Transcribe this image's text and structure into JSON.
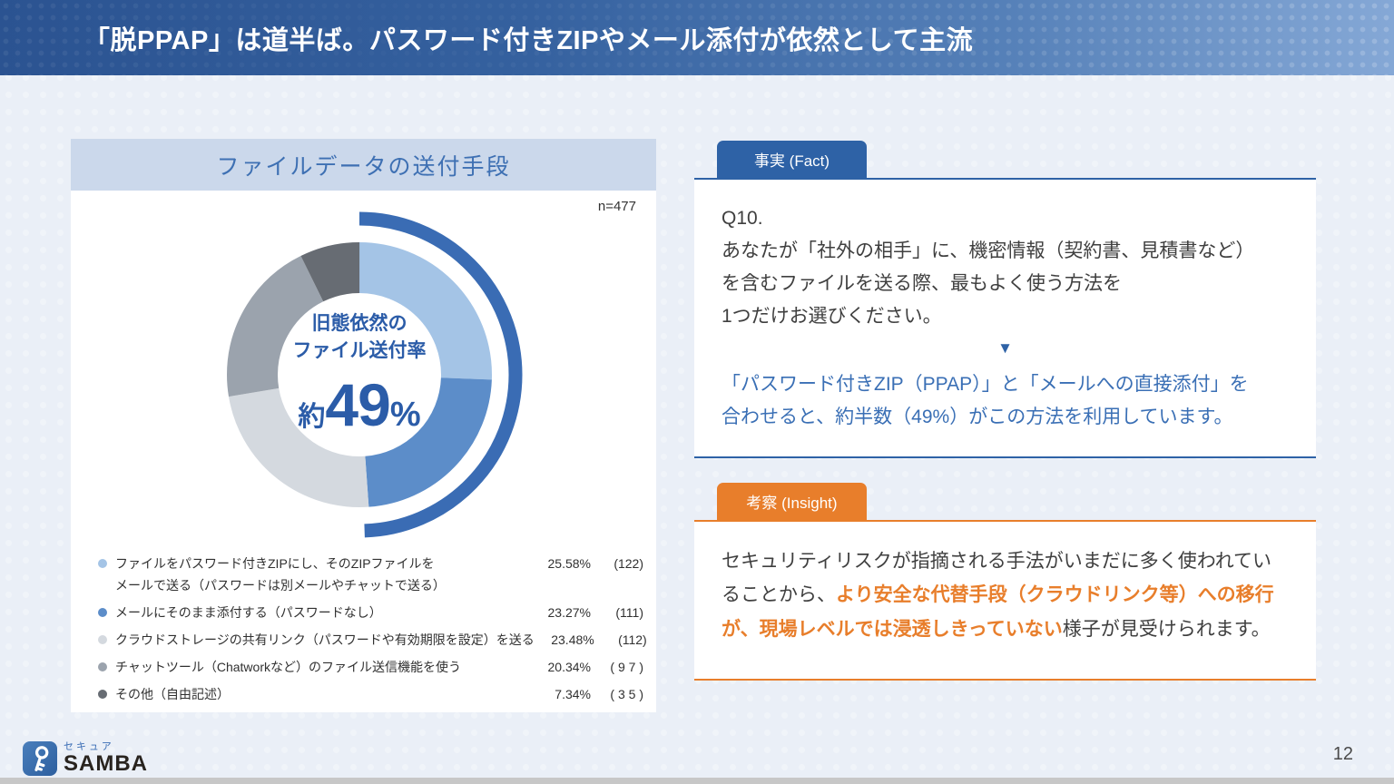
{
  "header": {
    "title": "「脱PPAP」は道半ば。パスワード付きZIPやメール添付が依然として主流"
  },
  "chart_panel": {
    "title": "ファイルデータの送付手段",
    "sample_label": "n=477",
    "center": {
      "line1": "旧態依然の",
      "line2": "ファイル送付率",
      "prefix": "約",
      "value": "49",
      "suffix": "%"
    }
  },
  "chart_data": {
    "type": "pie",
    "donut": true,
    "title": "ファイルデータの送付手段",
    "sample_size": 477,
    "start_angle_deg": 0,
    "direction": "clockwise",
    "segments": [
      {
        "label": "ファイルをパスワード付きZIPにし、そのZIPファイルを\nメールで送る（パスワードは別メールやチャットで送る）",
        "percent": 25.58,
        "count": 122,
        "display_value": "25.58%",
        "display_count": "(122)",
        "color": "#a4c4e6"
      },
      {
        "label": "メールにそのまま添付する（パスワードなし）",
        "percent": 23.27,
        "count": 111,
        "display_value": "23.27%",
        "display_count": "(111)",
        "color": "#5c8dc9"
      },
      {
        "label": "クラウドストレージの共有リンク（パスワードや有効期限を設定）を送る",
        "percent": 23.48,
        "count": 112,
        "display_value": "23.48%",
        "display_count": "(112)",
        "color": "#d4d9df"
      },
      {
        "label": "チャットツール（Chatworkなど）のファイル送信機能を使う",
        "percent": 20.34,
        "count": 97,
        "display_value": "20.34%",
        "display_count": "( 9 7 )",
        "color": "#9ba3ad"
      },
      {
        "label": "その他（自由記述）",
        "percent": 7.34,
        "count": 35,
        "display_value": "7.34%",
        "display_count": "( 3 5 )",
        "color": "#676c73"
      }
    ],
    "highlight_arc": {
      "percent": 48.85,
      "color": "#3a6cb4",
      "meaning": "旧態依然のファイル送付率 約49%"
    }
  },
  "fact": {
    "tab_label": "事実 (Fact)",
    "question": "Q10.\nあなたが「社外の相手」に、機密情報（契約書、見積書など）\nを含むファイルを送る際、最もよく使う方法を\n1つだけお選びください。",
    "arrow_icon": "▼",
    "conclusion": "「パスワード付きZIP（PPAP）」と「メールへの直接添付」を\n合わせると、約半数（49%）がこの方法を利用しています。"
  },
  "insight": {
    "tab_label": "考察 (Insight)",
    "text_before": "セキュリティリスクが指摘される手法がいまだに多く使われていることから、",
    "text_highlight": "より安全な代替手段（クラウドリンク等）への移行が、現場レベルでは浸透しきっていない",
    "text_after": "様子が見受けられます。"
  },
  "footer": {
    "logo_tagline": "セキュア",
    "logo_name": "SAMBA",
    "page_number": "12"
  },
  "colors": {
    "accent_blue": "#2e62a6",
    "accent_orange": "#e87e2b",
    "conclusion_blue": "#3a6fb5",
    "panel_titlebar": "#cbd8eb",
    "header_gradient_left": "#2b5391",
    "header_gradient_right": "#85a8d6"
  }
}
